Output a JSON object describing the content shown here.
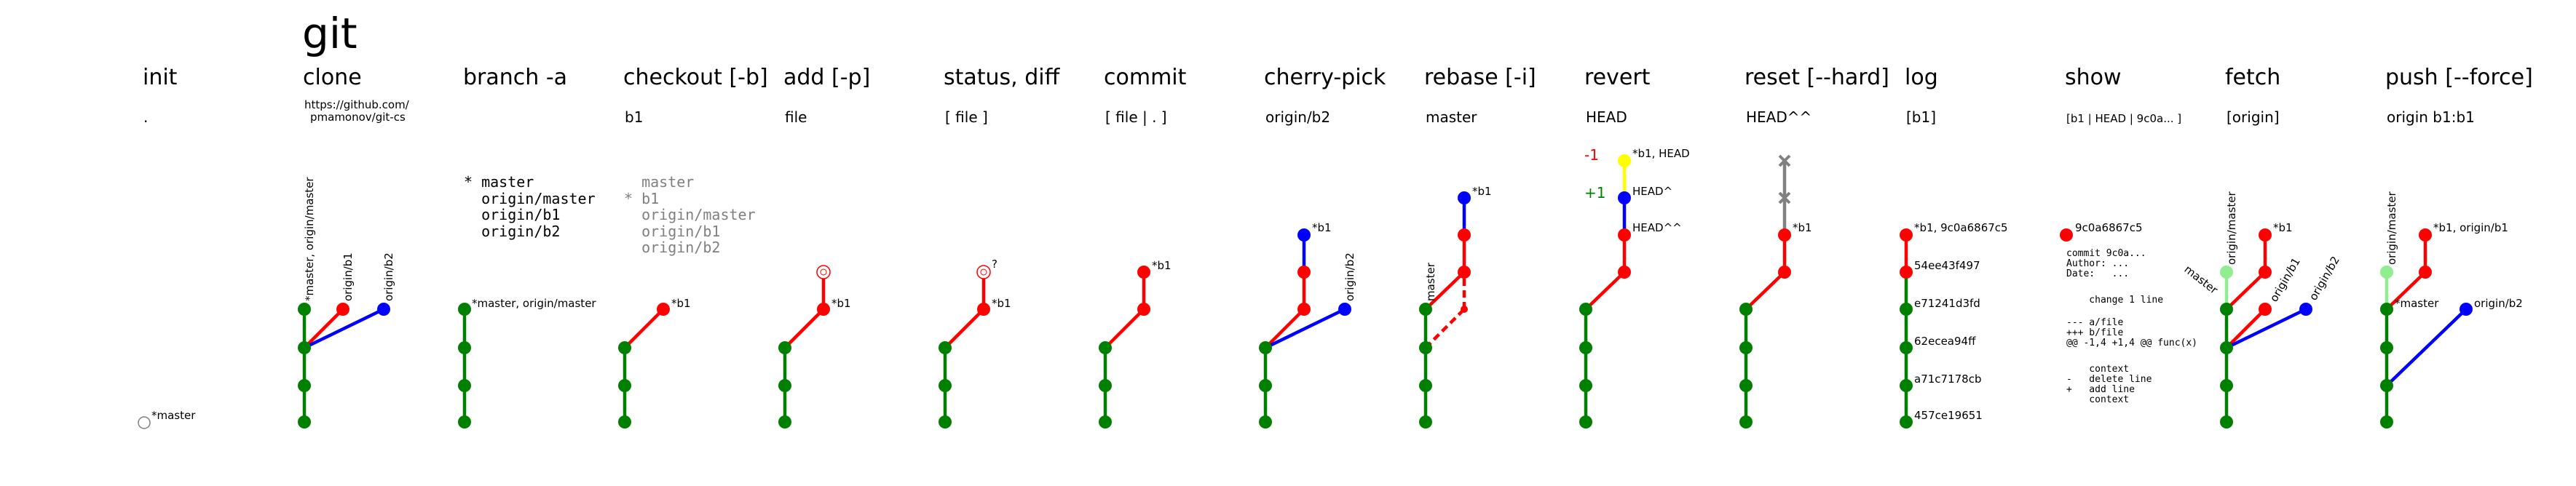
{
  "title": "git",
  "colors": {
    "green": "#008000",
    "red": "#ff0000",
    "blue": "#0000ff",
    "yellow": "#ffff00",
    "lightgreen": "#90ee90",
    "gray": "#808080"
  },
  "panels": [
    {
      "name": "init",
      "title": "init",
      "arg": ".",
      "extras": [
        {
          "type": "empty_node",
          "label": "*master"
        }
      ]
    },
    {
      "name": "clone",
      "title": "clone",
      "arg_lines": [
        "https://github.com/",
        "pmamonov/git-cs"
      ],
      "extras": [
        {
          "type": "branch_labels_rotated",
          "labels": [
            "*master, origin/master",
            "origin/b1",
            "origin/b2"
          ]
        }
      ]
    },
    {
      "name": "branch",
      "title": "branch -a",
      "arg": "",
      "list": [
        "* master",
        "  origin/master",
        "  origin/b1",
        "  origin/b2"
      ],
      "node_label": "*master, origin/master"
    },
    {
      "name": "checkout",
      "title": "checkout [-b]",
      "arg": "b1",
      "list": [
        "  master",
        "* b1",
        "  origin/master",
        "  origin/b1",
        "  origin/b2"
      ],
      "node_label": "*b1"
    },
    {
      "name": "add",
      "title": "add [-p]",
      "arg": "file",
      "node_label": "*b1"
    },
    {
      "name": "status",
      "title": "status, diff",
      "arg": "[ file ]",
      "node_label": "*b1",
      "extra_label": "?"
    },
    {
      "name": "commit",
      "title": "commit",
      "arg": "[ file | . ]",
      "node_label": "*b1"
    },
    {
      "name": "cherry-pick",
      "title": "cherry-pick",
      "arg": "origin/b2",
      "node_label": "*b1",
      "rotated_label": "origin/b2"
    },
    {
      "name": "rebase",
      "title": "rebase [-i]",
      "arg": "master",
      "node_label": "*b1",
      "rotated_label": "master"
    },
    {
      "name": "revert",
      "title": "revert",
      "arg": "HEAD",
      "labels": [
        "*b1, HEAD",
        "HEAD^",
        "HEAD^^"
      ],
      "markers": [
        "-1",
        "+1"
      ]
    },
    {
      "name": "reset",
      "title": "reset [--hard]",
      "arg": "HEAD^^",
      "node_label": "*b1"
    },
    {
      "name": "log",
      "title": "log",
      "arg": "[b1]",
      "commits": [
        "*b1, 9c0a6867c5",
        "54ee43f497",
        "e71241d3fd",
        "62ecea94ff",
        "a71c7178cb",
        "457ce19651"
      ]
    },
    {
      "name": "show",
      "title": "show",
      "arg": "[b1 | HEAD | 9c0a... ]",
      "hash": "9c0a6867c5",
      "output": [
        "commit 9c0a...",
        "Author: ...",
        "Date:   ...",
        "",
        "    change 1 line",
        "",
        "--- a/file",
        "+++ b/file",
        "@@ -1,4 +1,4 @@ func(x)",
        "",
        "    context",
        "-   delete line",
        "+   add line",
        "    context"
      ]
    },
    {
      "name": "fetch",
      "title": "fetch",
      "arg": "[origin]",
      "labels": [
        "origin/master",
        "*b1",
        "master",
        "origin/b1",
        "origin/b2"
      ]
    },
    {
      "name": "push",
      "title": "push [--force]",
      "arg": "origin b1:b1",
      "labels": [
        "origin/master",
        "*b1, origin/b1",
        "*master",
        "origin/b2"
      ]
    }
  ]
}
